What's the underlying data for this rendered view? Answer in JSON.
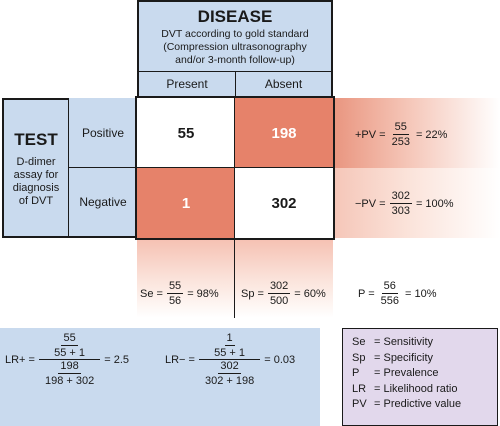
{
  "disease": {
    "title": "DISEASE",
    "desc_lines": [
      "DVT according to gold standard",
      "(Compression ultrasonography",
      "and/or 3-month follow-up)"
    ],
    "present": "Present",
    "absent": "Absent"
  },
  "test": {
    "title": "TEST",
    "desc_lines": [
      "D-dimer",
      "assay for",
      "diagnosis",
      "of DVT"
    ],
    "positive": "Positive",
    "negative": "Negative"
  },
  "cells": {
    "tp": "55",
    "fp": "198",
    "fn": "1",
    "tn": "302"
  },
  "ppv": {
    "label": "+PV =",
    "num": "55",
    "den": "253",
    "result": "= 22%"
  },
  "npv": {
    "label": "−PV =",
    "num": "302",
    "den": "303",
    "result": "= 100%"
  },
  "se": {
    "label": "Se =",
    "num": "55",
    "den": "56",
    "result": "= 98%"
  },
  "sp": {
    "label": "Sp =",
    "num": "302",
    "den": "500",
    "result": "= 60%"
  },
  "prev": {
    "label": "P =",
    "num": "56",
    "den": "556",
    "result": "= 10%"
  },
  "lr_pos": {
    "label": "LR+ =",
    "top_num": "55",
    "top_den": "55 + 1",
    "bot_num": "198",
    "bot_den": "198 + 302",
    "result": "= 2.5"
  },
  "lr_neg": {
    "label": "LR− =",
    "top_num": "1",
    "top_den": "55 + 1",
    "bot_num": "302",
    "bot_den": "302 + 198",
    "result": "= 0.03"
  },
  "legend": [
    {
      "key": "Se",
      "text": "= Sensitivity"
    },
    {
      "key": "Sp",
      "text": "= Specificity"
    },
    {
      "key": "P",
      "text": "= Prevalence"
    },
    {
      "key": "LR",
      "text": "= Likelihood ratio"
    },
    {
      "key": "PV",
      "text": "= Predictive value"
    }
  ],
  "colors": {
    "header_blue": "#c9daee",
    "highlight": "#e6826a",
    "legend_bg": "#e2d8ec"
  }
}
